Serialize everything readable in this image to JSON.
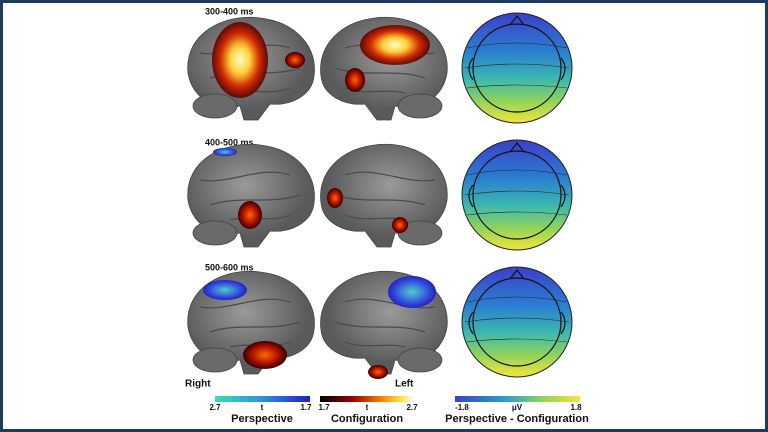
{
  "panels": [
    {
      "label": "300-400  ms"
    },
    {
      "label": "400-500  ms"
    },
    {
      "label": "500-600  ms"
    }
  ],
  "hemispheres": {
    "right": "Right",
    "left": "Left"
  },
  "colorbars": [
    {
      "min": "2.7",
      "unit": "t",
      "max": "1.7",
      "title": "Perspective"
    },
    {
      "min": "1.7",
      "unit": "t",
      "max": "2.7",
      "title": "Configuration"
    },
    {
      "min": "-1.8",
      "unit": "μV",
      "max": "1.8",
      "title": "Perspective - Configuration"
    }
  ]
}
